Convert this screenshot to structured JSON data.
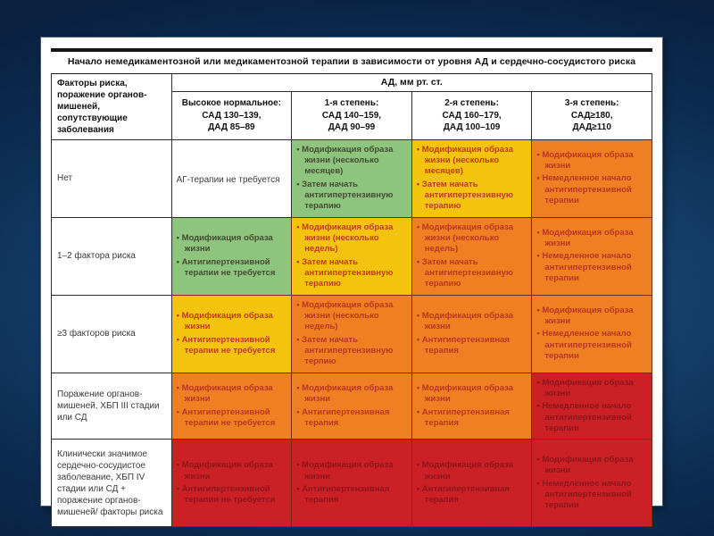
{
  "table": {
    "title": "Начало немедикаментозной или медикаментозной терапии в зависимости от уровня АД и сердечно-сосудистого риска",
    "row_header_title": "Факторы риска, поражение органов-мишеней, сопутствующие заболевания",
    "bp_group_header": "АД, мм рт. ст.",
    "bp_columns": [
      {
        "degree": "Высокое нормальное:",
        "sad": "САД 130–139,",
        "dad": "ДАД 85–89"
      },
      {
        "degree": "1-я степень:",
        "sad": "САД 140–159,",
        "dad": "ДАД 90–99"
      },
      {
        "degree": "2-я степень:",
        "sad": "САД 160–179,",
        "dad": "ДАД 100–109"
      },
      {
        "degree": "3-я степень:",
        "sad": "САД≥180,",
        "dad": "ДАД≥110"
      }
    ],
    "rows": [
      {
        "label": "Нет",
        "cells": [
          {
            "color": "white",
            "text": "АГ-терапии не требуется"
          },
          {
            "color": "green",
            "bullets": [
              "Модификация образа жизни (несколько месяцев)",
              "Затем начать антигипертензивную терапию"
            ]
          },
          {
            "color": "yellow",
            "bullets": [
              "Модификация образа жизни (несколько месяцев)",
              "Затем начать антигипертензивную терапию"
            ]
          },
          {
            "color": "orange",
            "bullets": [
              "Модификация образа жизни",
              "Немедленное начало антигипертензивной терапии"
            ]
          }
        ]
      },
      {
        "label": "1–2 фактора риска",
        "cells": [
          {
            "color": "green",
            "bullets": [
              "Модификация образа жизни",
              "Антигипертензивной терапии не требуется"
            ]
          },
          {
            "color": "yellow",
            "bullets": [
              "Модификация образа жизни (несколько недель)",
              "Затем начать антигипертензивную терапию"
            ]
          },
          {
            "color": "orange",
            "bullets": [
              "Модификация образа жизни (несколько недель)",
              "Затем начать антигипертензивную терапию"
            ]
          },
          {
            "color": "orange",
            "bullets": [
              "Модификация образа жизни",
              "Немедленное начало антигипертензивной терапии"
            ]
          }
        ]
      },
      {
        "label": "≥3 факторов риска",
        "cells": [
          {
            "color": "yellow",
            "bullets": [
              "Модификация образа жизни",
              "Антигипертензивной терапии не требуется"
            ]
          },
          {
            "color": "orange",
            "bullets": [
              "Модификация образа жизни (несколько недель)",
              "Затем начать антигипертензивную терпию"
            ]
          },
          {
            "color": "orange",
            "bullets": [
              "Модификация образа жизни",
              "Антигипертензивная терапия"
            ]
          },
          {
            "color": "orange",
            "bullets": [
              "Модификация образа жизни",
              "Немедленное начало антигипертензивной терапии"
            ]
          }
        ]
      },
      {
        "label": "Поражение органов-мишеней, ХБП III стадии или СД",
        "cells": [
          {
            "color": "orange",
            "bullets": [
              "Модификация образа жизни",
              "Антигипертензивной терапии не требуется"
            ]
          },
          {
            "color": "orange",
            "bullets": [
              "Модификация образа жизни",
              "Антигипертензивная терапия"
            ]
          },
          {
            "color": "orange",
            "bullets": [
              "Модификация образа жизни",
              "Антигипертензивная терапия"
            ]
          },
          {
            "color": "red",
            "bullets": [
              "Модификация образа жизни",
              "Немедленное начало антигипертензивной терапии"
            ]
          }
        ]
      },
      {
        "label": "Клинически значимое сердечно-сосудистое заболевание, ХБП IV стадии или СД + поражение органов-мишеней/ факторы риска",
        "cells": [
          {
            "color": "red",
            "bullets": [
              "Модификация образа жизни",
              "Антигипертензивной терапии не требуется"
            ]
          },
          {
            "color": "red",
            "bullets": [
              "Модификация образа жизни",
              "Антигипертензивная терапия"
            ]
          },
          {
            "color": "red",
            "bullets": [
              "Модификация образа жизни",
              "Антигипертензивная терапия"
            ]
          },
          {
            "color": "red",
            "bullets": [
              "Модификация образа жизни",
              "Немедленное начало антигипертензивной терапии"
            ]
          }
        ]
      }
    ]
  },
  "colors": {
    "white": {
      "bg": "#ffffff",
      "text": "#3a3a38"
    },
    "green": {
      "bg": "#8dc57f",
      "text": "#454a30"
    },
    "yellow": {
      "bg": "#f3c30e",
      "text": "#c23a1d"
    },
    "orange": {
      "bg": "#ee7f22",
      "text": "#bb3620"
    },
    "red": {
      "bg": "#cb2026",
      "text": "#8c161b"
    },
    "slide_bg": "#ffffff",
    "backdrop_navy": "#0d2c52",
    "rule_black": "#141414"
  }
}
